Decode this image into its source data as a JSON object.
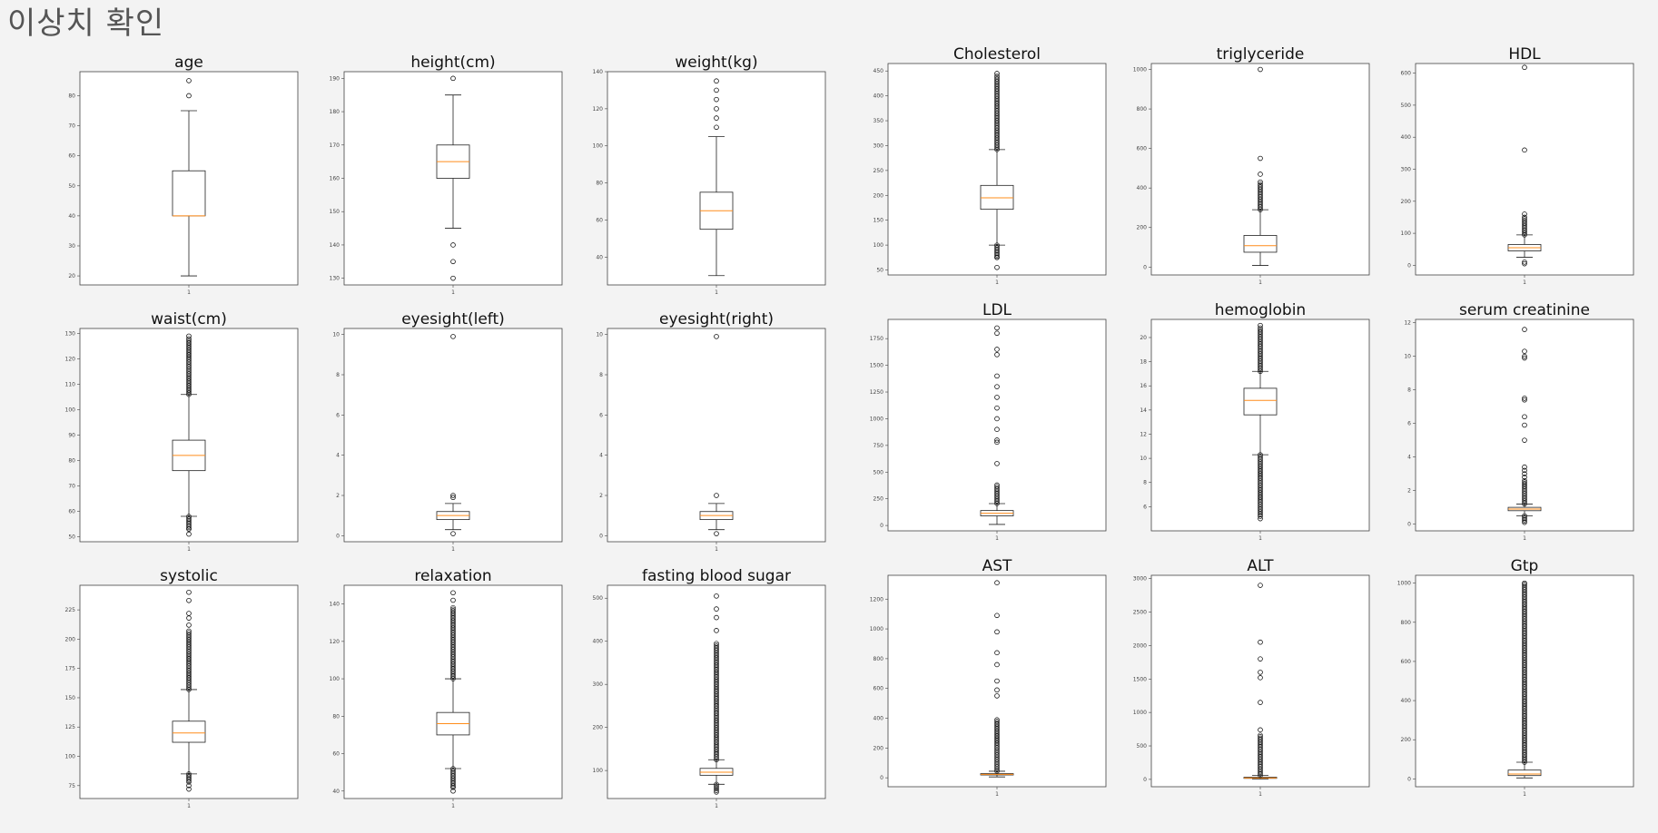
{
  "page": {
    "title": "이상치 확인"
  },
  "chart_data": [
    {
      "type": "box",
      "title": "age",
      "xtick": "1",
      "ylim": [
        17,
        88
      ],
      "yticks": [
        20,
        30,
        40,
        50,
        60,
        70,
        80
      ],
      "whisker_low": 20,
      "q1": 40,
      "median": 40,
      "q3": 55,
      "whisker_high": 75,
      "outliers_high": [
        80,
        85
      ],
      "outliers_low": [],
      "dense_high": null,
      "dense_low": null
    },
    {
      "type": "box",
      "title": "height(cm)",
      "xtick": "1",
      "ylim": [
        128,
        192
      ],
      "yticks": [
        130,
        140,
        150,
        160,
        170,
        180,
        190
      ],
      "whisker_low": 145,
      "q1": 160,
      "median": 165,
      "q3": 170,
      "whisker_high": 185,
      "outliers_high": [
        190
      ],
      "outliers_low": [
        140,
        135,
        130
      ],
      "dense_high": null,
      "dense_low": null
    },
    {
      "type": "box",
      "title": "weight(kg)",
      "xtick": "1",
      "ylim": [
        25,
        140
      ],
      "yticks": [
        40,
        60,
        80,
        100,
        120,
        140
      ],
      "whisker_low": 30,
      "q1": 55,
      "median": 65,
      "q3": 75,
      "whisker_high": 105,
      "outliers_high": [
        110,
        115,
        120,
        125,
        130,
        135
      ],
      "outliers_low": [],
      "dense_high": null,
      "dense_low": null
    },
    {
      "type": "box",
      "title": "Cholesterol",
      "xtick": "1",
      "ylim": [
        40,
        465
      ],
      "yticks": [
        50,
        100,
        150,
        200,
        250,
        300,
        350,
        400,
        450
      ],
      "whisker_low": 100,
      "q1": 172,
      "median": 195,
      "q3": 220,
      "whisker_high": 292,
      "outliers_high": [
        445
      ],
      "outliers_low": [
        75,
        55
      ],
      "dense_high": [
        292,
        440
      ],
      "dense_low": [
        75,
        100
      ]
    },
    {
      "type": "box",
      "title": "triglyceride",
      "xtick": "1",
      "ylim": [
        -40,
        1030
      ],
      "yticks": [
        0,
        200,
        400,
        600,
        800,
        1000
      ],
      "whisker_low": 8,
      "q1": 75,
      "median": 108,
      "q3": 160,
      "whisker_high": 290,
      "outliers_high": [
        1000,
        550,
        470,
        430
      ],
      "outliers_low": [],
      "dense_high": [
        290,
        420
      ],
      "dense_low": null
    },
    {
      "type": "box",
      "title": "HDL",
      "xtick": "1",
      "ylim": [
        -30,
        630
      ],
      "yticks": [
        0,
        100,
        200,
        300,
        400,
        500,
        600
      ],
      "whisker_low": 25,
      "q1": 45,
      "median": 55,
      "q3": 65,
      "whisker_high": 95,
      "outliers_high": [
        618,
        360,
        160,
        150
      ],
      "outliers_low": [
        10,
        5
      ],
      "dense_high": [
        95,
        145
      ],
      "dense_low": null
    },
    {
      "type": "box",
      "title": "waist(cm)",
      "xtick": "1",
      "ylim": [
        48,
        132
      ],
      "yticks": [
        50,
        60,
        70,
        80,
        90,
        100,
        110,
        120,
        130
      ],
      "whisker_low": 58,
      "q1": 76,
      "median": 82,
      "q3": 88,
      "whisker_high": 106,
      "outliers_high": [
        129
      ],
      "outliers_low": [
        51,
        53
      ],
      "dense_high": [
        106,
        128
      ],
      "dense_low": [
        53,
        58
      ]
    },
    {
      "type": "box",
      "title": "eyesight(left)",
      "xtick": "1",
      "ylim": [
        -0.3,
        10.3
      ],
      "yticks": [
        0,
        2,
        4,
        6,
        8,
        10
      ],
      "whisker_low": 0.3,
      "q1": 0.8,
      "median": 1.0,
      "q3": 1.2,
      "whisker_high": 1.6,
      "outliers_high": [
        9.9,
        2.0,
        1.9
      ],
      "outliers_low": [
        0.1
      ],
      "dense_high": null,
      "dense_low": null
    },
    {
      "type": "box",
      "title": "eyesight(right)",
      "xtick": "1",
      "ylim": [
        -0.3,
        10.3
      ],
      "yticks": [
        0,
        2,
        4,
        6,
        8,
        10
      ],
      "whisker_low": 0.3,
      "q1": 0.8,
      "median": 1.0,
      "q3": 1.2,
      "whisker_high": 1.6,
      "outliers_high": [
        9.9,
        2.0
      ],
      "outliers_low": [
        0.1
      ],
      "dense_high": null,
      "dense_low": null
    },
    {
      "type": "box",
      "title": "LDL",
      "xtick": "1",
      "ylim": [
        -50,
        1930
      ],
      "yticks": [
        0,
        250,
        500,
        750,
        1000,
        1250,
        1500,
        1750
      ],
      "whisker_low": 10,
      "q1": 90,
      "median": 115,
      "q3": 140,
      "whisker_high": 205,
      "outliers_high": [
        1850,
        1800,
        1650,
        1600,
        1400,
        1300,
        1200,
        1100,
        1000,
        900,
        800,
        780,
        580
      ],
      "outliers_low": [],
      "dense_high": [
        205,
        380
      ],
      "dense_low": null
    },
    {
      "type": "box",
      "title": "hemoglobin",
      "xtick": "1",
      "ylim": [
        4,
        21.5
      ],
      "yticks": [
        6,
        8,
        10,
        12,
        14,
        16,
        18,
        20
      ],
      "whisker_low": 10.3,
      "q1": 13.6,
      "median": 14.8,
      "q3": 15.8,
      "whisker_high": 17.2,
      "outliers_high": [
        21
      ],
      "outliers_low": [
        5
      ],
      "dense_high": [
        17.2,
        20.8
      ],
      "dense_low": [
        5.2,
        10.3
      ]
    },
    {
      "type": "box",
      "title": "serum creatinine",
      "xtick": "1",
      "ylim": [
        -0.4,
        12.2
      ],
      "yticks": [
        0,
        2,
        4,
        6,
        8,
        10,
        12
      ],
      "whisker_low": 0.5,
      "q1": 0.8,
      "median": 0.9,
      "q3": 1.0,
      "whisker_high": 1.2,
      "outliers_high": [
        11.6,
        10.3,
        10.0,
        9.9,
        7.5,
        7.4,
        6.4,
        5.9,
        5.0,
        3.4,
        3.2,
        3.0,
        2.8
      ],
      "outliers_low": [],
      "dense_high": [
        1.2,
        2.6
      ],
      "dense_low": [
        0.1,
        0.5
      ]
    },
    {
      "type": "box",
      "title": "systolic",
      "xtick": "1",
      "ylim": [
        64,
        246
      ],
      "yticks": [
        75,
        100,
        125,
        150,
        175,
        200,
        225
      ],
      "whisker_low": 85,
      "q1": 112,
      "median": 120,
      "q3": 130,
      "whisker_high": 157,
      "outliers_high": [
        240,
        233,
        222,
        218,
        212
      ],
      "outliers_low": [
        72,
        75
      ],
      "dense_high": [
        157,
        207
      ],
      "dense_low": [
        78,
        85
      ]
    },
    {
      "type": "box",
      "title": "relaxation",
      "xtick": "1",
      "ylim": [
        36,
        150
      ],
      "yticks": [
        40,
        60,
        80,
        100,
        120,
        140
      ],
      "whisker_low": 52,
      "q1": 70,
      "median": 76,
      "q3": 82,
      "whisker_high": 100,
      "outliers_high": [
        146,
        142
      ],
      "outliers_low": [
        40,
        42
      ],
      "dense_high": [
        100,
        138
      ],
      "dense_low": [
        42,
        52
      ]
    },
    {
      "type": "box",
      "title": "fasting blood sugar",
      "xtick": "1",
      "ylim": [
        35,
        530
      ],
      "yticks": [
        100,
        200,
        300,
        400,
        500
      ],
      "whisker_low": 68,
      "q1": 89,
      "median": 96,
      "q3": 105,
      "whisker_high": 125,
      "outliers_high": [
        505,
        475,
        455,
        425
      ],
      "outliers_low": [],
      "dense_high": [
        125,
        395
      ],
      "dense_low": [
        50,
        68
      ]
    },
    {
      "type": "box",
      "title": "AST",
      "xtick": "1",
      "ylim": [
        -60,
        1360
      ],
      "yticks": [
        0,
        200,
        400,
        600,
        800,
        1000,
        1200
      ],
      "whisker_low": 6,
      "q1": 19,
      "median": 23,
      "q3": 28,
      "whisker_high": 44,
      "outliers_high": [
        1310,
        1090,
        980,
        840,
        760,
        650,
        590,
        550
      ],
      "outliers_low": [],
      "dense_high": [
        44,
        390
      ],
      "dense_low": null
    },
    {
      "type": "box",
      "title": "ALT",
      "xtick": "1",
      "ylim": [
        -110,
        3050
      ],
      "yticks": [
        0,
        500,
        1000,
        1500,
        2000,
        2500,
        3000
      ],
      "whisker_low": 5,
      "q1": 15,
      "median": 21,
      "q3": 32,
      "whisker_high": 60,
      "outliers_high": [
        2900,
        2050,
        1800,
        1600,
        1520,
        1150,
        740
      ],
      "outliers_low": [],
      "dense_high": [
        60,
        660
      ],
      "dense_low": null
    },
    {
      "type": "box",
      "title": "Gtp",
      "xtick": "1",
      "ylim": [
        -40,
        1040
      ],
      "yticks": [
        0,
        200,
        400,
        600,
        800,
        1000
      ],
      "whisker_low": 5,
      "q1": 17,
      "median": 25,
      "q3": 45,
      "whisker_high": 85,
      "outliers_high": [
        1000
      ],
      "outliers_low": [],
      "dense_high": [
        85,
        995
      ],
      "dense_low": null
    }
  ]
}
